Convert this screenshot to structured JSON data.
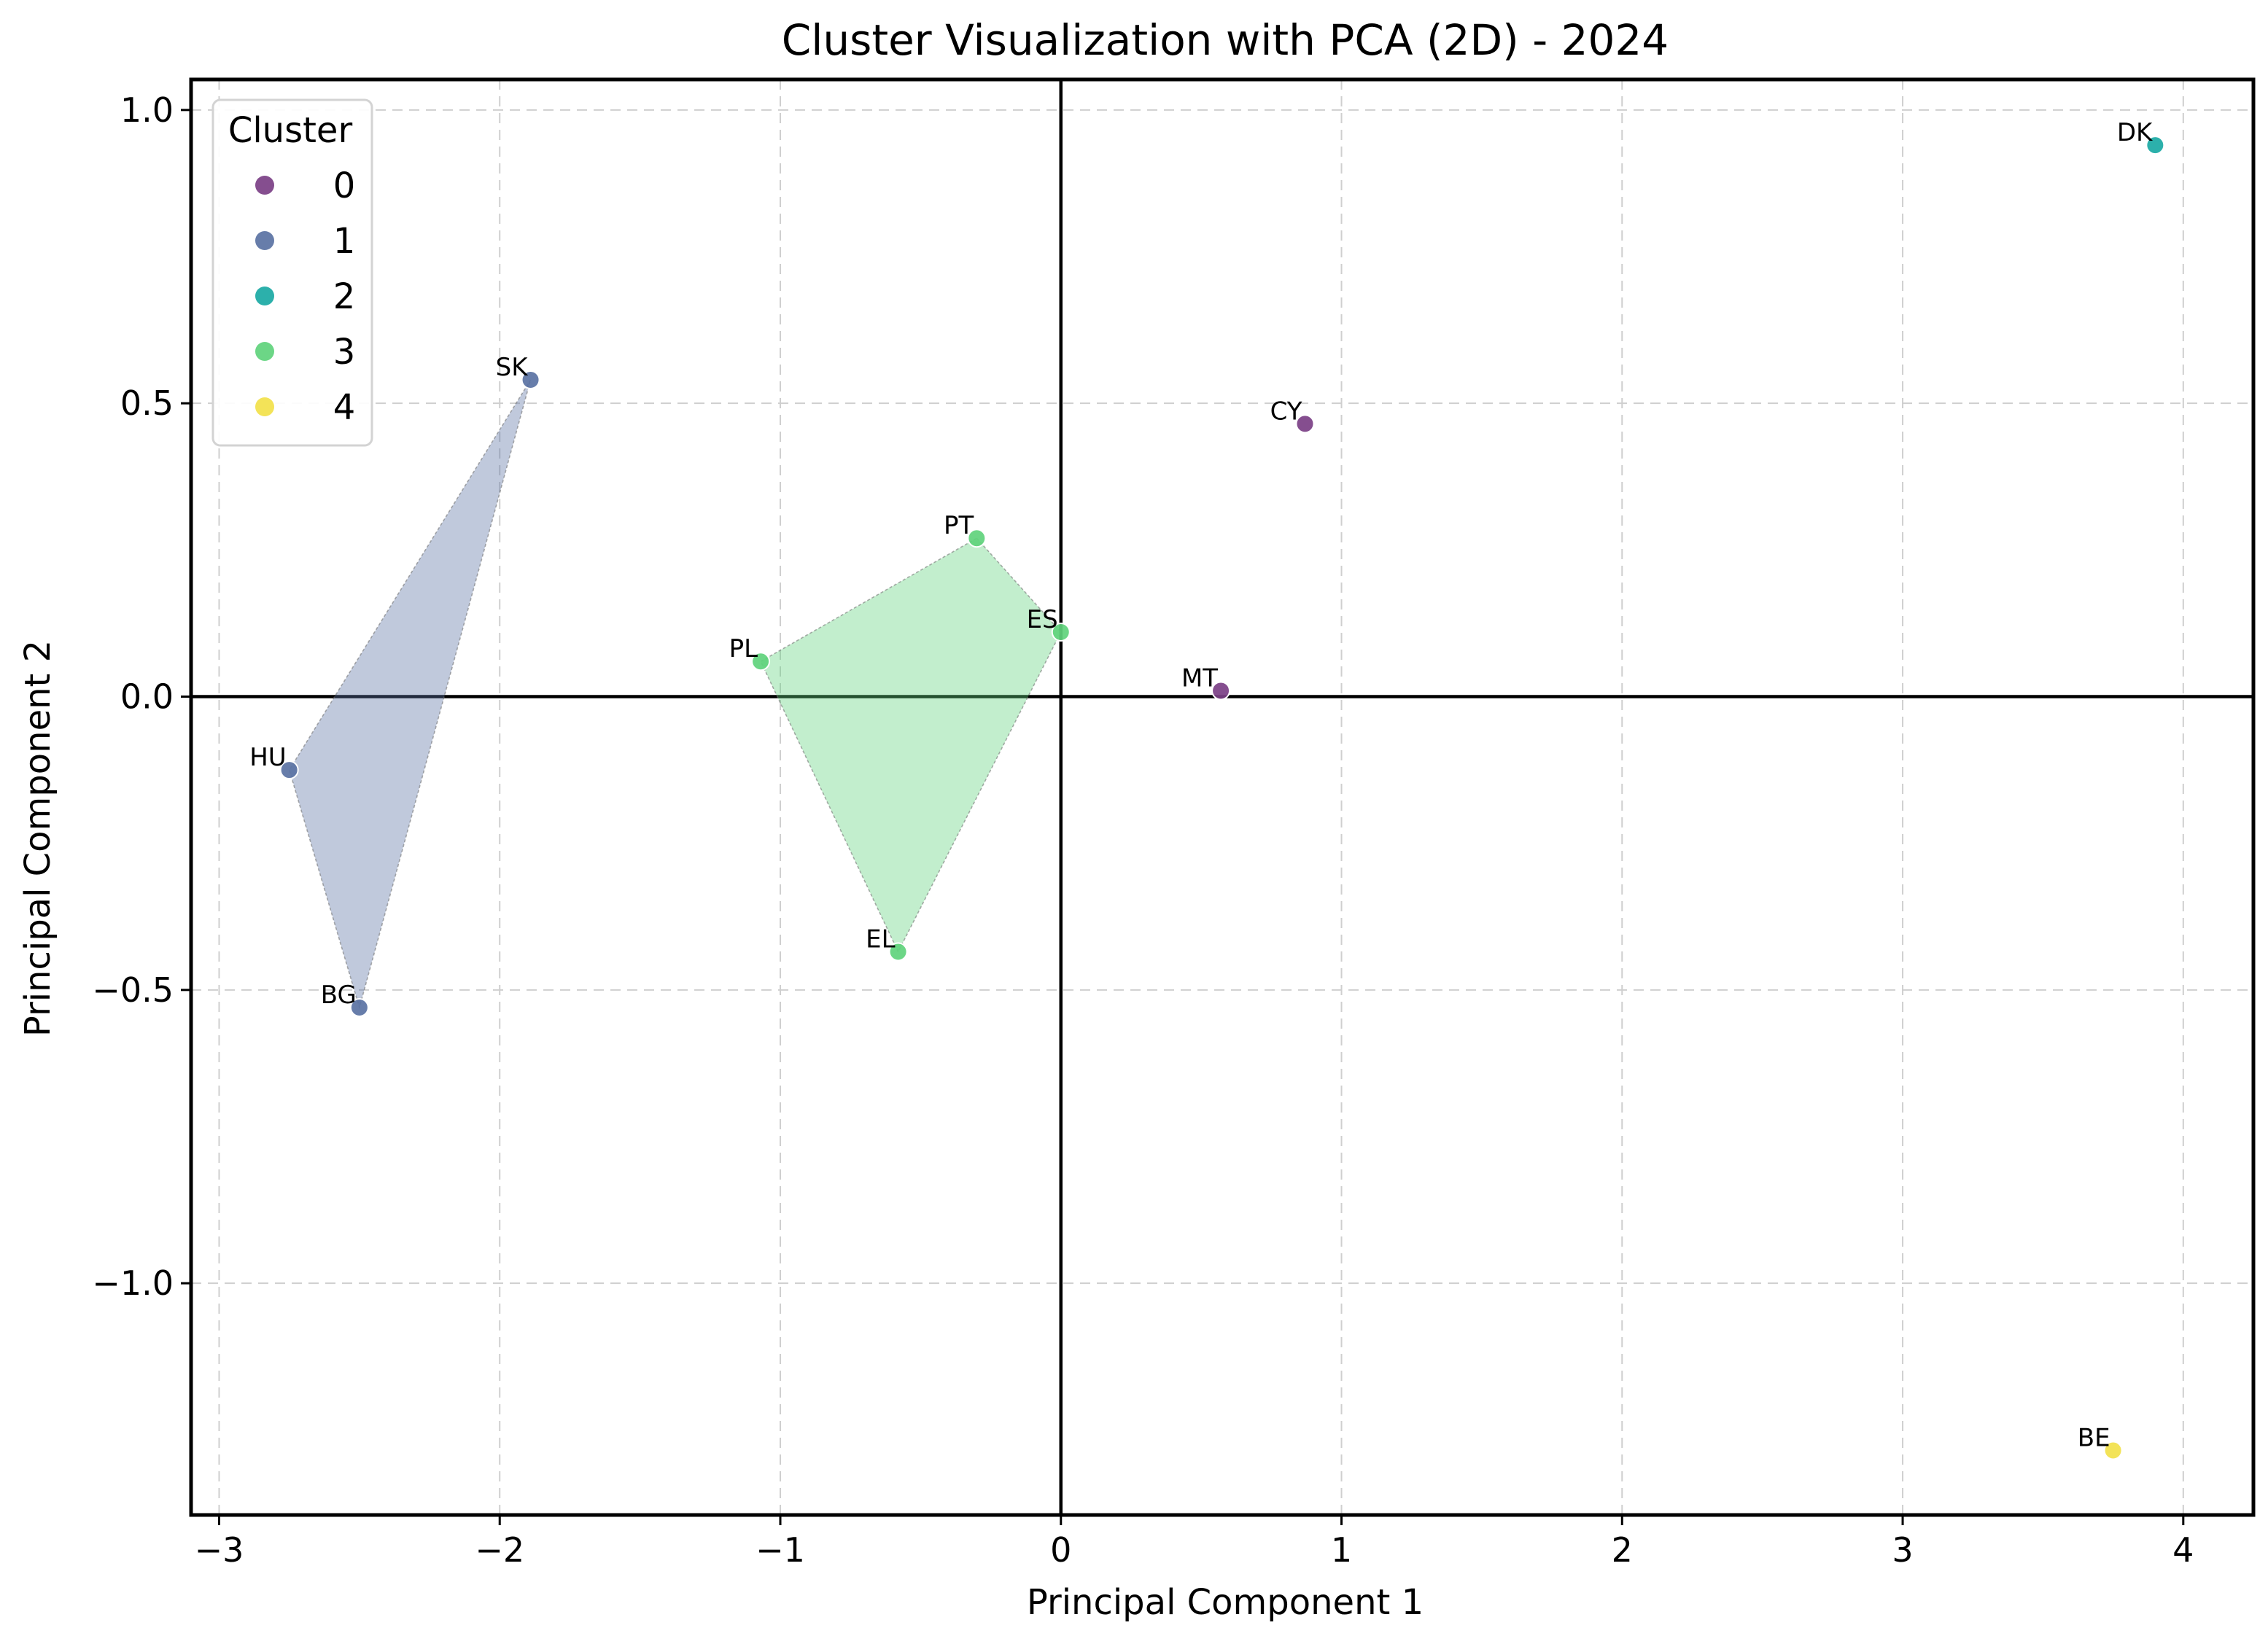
{
  "chart_data": {
    "type": "scatter",
    "title": "Cluster Visualization with PCA (2D) - 2024",
    "xlabel": "Principal Component 1",
    "ylabel": "Principal Component 2",
    "xlim": [
      -3.1,
      4.25
    ],
    "ylim": [
      -1.395,
      1.052
    ],
    "xticks": [
      -3,
      -2,
      -1,
      0,
      1,
      2,
      3,
      4
    ],
    "xtick_labels": [
      "−3",
      "−2",
      "−1",
      "0",
      "1",
      "2",
      "3",
      "4"
    ],
    "yticks": [
      -1.0,
      -0.5,
      0.0,
      0.5,
      1.0
    ],
    "ytick_labels": [
      "−1.0",
      "−0.5",
      "0.0",
      "0.5",
      "1.0"
    ],
    "grid": true,
    "reference_lines": {
      "x": 0,
      "y": 0
    },
    "legend": {
      "title": "Cluster",
      "location": "upper-left",
      "entries": [
        {
          "label": "0",
          "color": "#7b3f85"
        },
        {
          "label": "1",
          "color": "#5a72a3"
        },
        {
          "label": "2",
          "color": "#1aa9a4"
        },
        {
          "label": "3",
          "color": "#5fd27c"
        },
        {
          "label": "4",
          "color": "#f2e14a"
        }
      ]
    },
    "points": [
      {
        "label": "DK",
        "x": 3.9,
        "y": 0.94,
        "cluster": 2
      },
      {
        "label": "SK",
        "x": -1.89,
        "y": 0.54,
        "cluster": 1
      },
      {
        "label": "CY",
        "x": 0.87,
        "y": 0.465,
        "cluster": 0
      },
      {
        "label": "PT",
        "x": -0.3,
        "y": 0.27,
        "cluster": 3
      },
      {
        "label": "ES",
        "x": 0.0,
        "y": 0.11,
        "cluster": 3
      },
      {
        "label": "PL",
        "x": -1.07,
        "y": 0.06,
        "cluster": 3
      },
      {
        "label": "MT",
        "x": 0.57,
        "y": 0.01,
        "cluster": 0
      },
      {
        "label": "HU",
        "x": -2.75,
        "y": -0.125,
        "cluster": 1
      },
      {
        "label": "EL",
        "x": -0.58,
        "y": -0.435,
        "cluster": 3
      },
      {
        "label": "BG",
        "x": -2.5,
        "y": -0.53,
        "cluster": 1
      },
      {
        "label": "BE",
        "x": 3.75,
        "y": -1.285,
        "cluster": 4
      }
    ],
    "hulls": [
      {
        "cluster": 1,
        "color": "#5a72a3",
        "points": [
          "SK",
          "HU",
          "BG"
        ]
      },
      {
        "cluster": 3,
        "color": "#5fd27c",
        "points": [
          "PT",
          "ES",
          "EL",
          "PL"
        ]
      }
    ]
  }
}
